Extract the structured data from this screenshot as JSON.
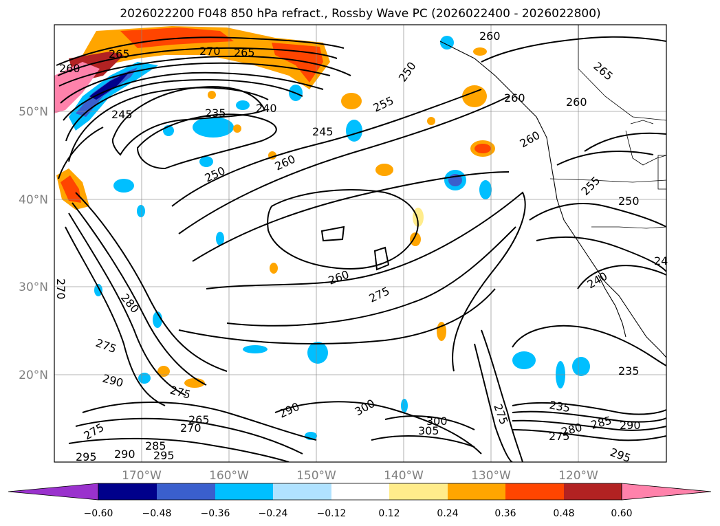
{
  "title": "2026022200 F048 850 hPa refract., Rossby Wave PC (2026022400 - 2026022800)",
  "lat_labels": [
    "50°N",
    "40°N",
    "30°N",
    "20°N"
  ],
  "lon_labels": [
    "170°W",
    "160°W",
    "150°W",
    "140°W",
    "130°W",
    "120°W"
  ],
  "colorbar": {
    "ticks": [
      "−0.60",
      "−0.48",
      "−0.36",
      "−0.24",
      "−0.12",
      "0.12",
      "0.24",
      "0.36",
      "0.48",
      "0.60"
    ],
    "colors": [
      "#9a32cd",
      "#00008b",
      "#3a5fcd",
      "#00bfff",
      "#b0e2ff",
      "#ffffff",
      "#ffec8b",
      "#ffa500",
      "#ff4500",
      "#b22222",
      "#ff82ab",
      "#ff82ab"
    ]
  },
  "contour_labels": [
    "265",
    "270",
    "265",
    "260",
    "245",
    "235",
    "240",
    "250",
    "255",
    "245",
    "260",
    "250",
    "260",
    "265",
    "260",
    "260",
    "260",
    "255",
    "250",
    "240",
    "260",
    "275",
    "280",
    "275",
    "270",
    "290",
    "275",
    "265",
    "270",
    "275",
    "285",
    "290",
    "295",
    "295",
    "290",
    "300",
    "300",
    "305",
    "275",
    "235",
    "235",
    "275",
    "280",
    "285",
    "290",
    "295",
    "24"
  ],
  "chart_data": {
    "type": "map-contour",
    "title": "2026022200 F048 850 hPa refract., Rossby Wave PC (2026022400 - 2026022800)",
    "field_contours": "850 hPa refractivity (N-units)",
    "field_shaded": "Rossby Wave PC",
    "lat_range": [
      10,
      60
    ],
    "lon_range": [
      -180,
      -110
    ],
    "lat_ticks": [
      50,
      40,
      30,
      20
    ],
    "lon_ticks": [
      -170,
      -160,
      -150,
      -140,
      -130,
      -120
    ],
    "colorbar_levels": [
      -0.6,
      -0.48,
      -0.36,
      -0.24,
      -0.12,
      0.12,
      0.24,
      0.36,
      0.48,
      0.6
    ],
    "colorbar_extend": "both"
  }
}
